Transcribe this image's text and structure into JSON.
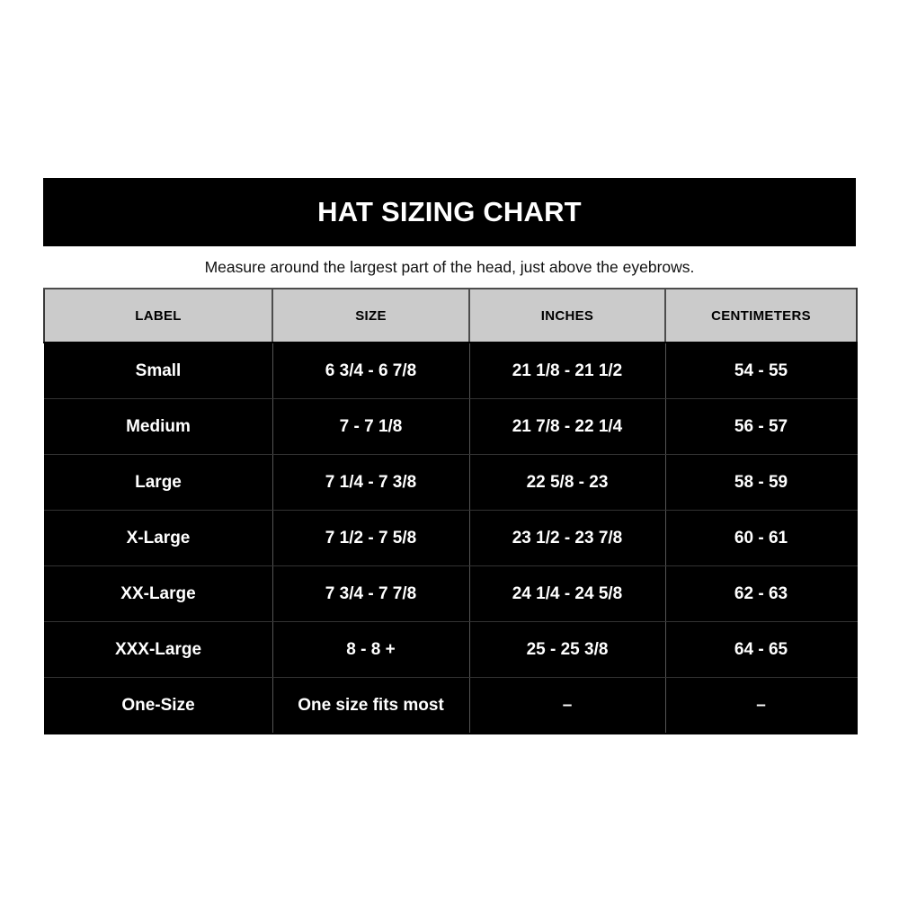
{
  "banner": {
    "title": "HAT SIZING CHART"
  },
  "subtitle": "Measure around the largest part of the head, just above the eyebrows.",
  "colors": {
    "banner_bg": "#000000",
    "banner_text": "#ffffff",
    "header_bg": "#cbcbcb",
    "header_text": "#000000",
    "row_bg": "#000000",
    "row_text": "#ffffff",
    "page_bg": "#ffffff"
  },
  "chart_data": {
    "type": "table",
    "title": "HAT SIZING CHART",
    "subtitle": "Measure around the largest part of the head, just above the eyebrows.",
    "columns": [
      "LABEL",
      "SIZE",
      "INCHES",
      "CENTIMETERS"
    ],
    "rows": [
      [
        "Small",
        "6 3/4 - 6 7/8",
        "21 1/8 - 21 1/2",
        "54 - 55"
      ],
      [
        "Medium",
        "7 - 7 1/8",
        "21 7/8 - 22 1/4",
        "56 - 57"
      ],
      [
        "Large",
        "7 1/4 - 7 3/8",
        "22 5/8 - 23",
        "58 - 59"
      ],
      [
        "X-Large",
        "7 1/2 - 7 5/8",
        "23 1/2 - 23 7/8",
        "60 - 61"
      ],
      [
        "XX-Large",
        "7 3/4 - 7 7/8",
        "24 1/4 - 24 5/8",
        "62 - 63"
      ],
      [
        "XXX-Large",
        "8 - 8 +",
        "25 - 25 3/8",
        "64 - 65"
      ],
      [
        "One-Size",
        "One size fits most",
        "–",
        "–"
      ]
    ]
  }
}
